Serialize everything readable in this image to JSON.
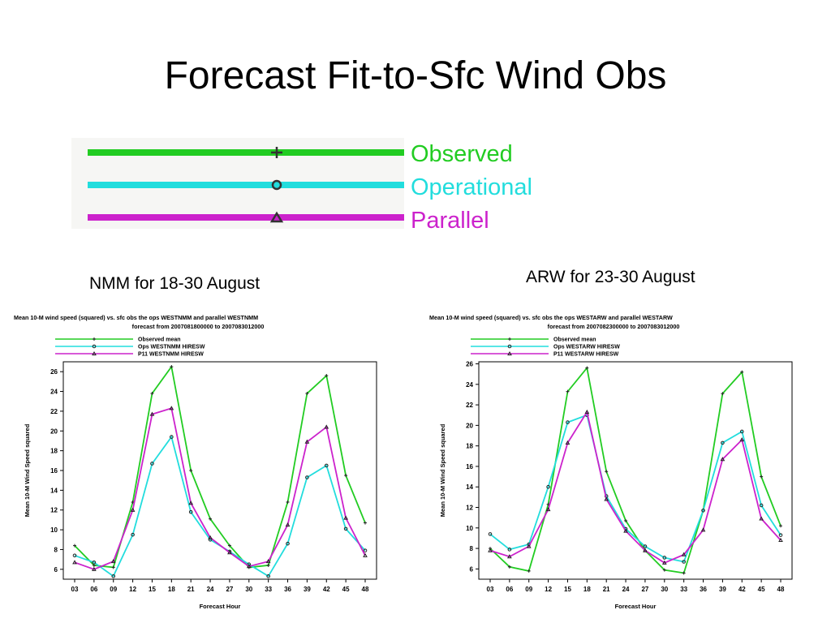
{
  "slide": {
    "title": "Forecast Fit-to-Sfc Wind Obs",
    "legend": [
      {
        "label": "Observed",
        "color": "#22cc22",
        "marker": "plus"
      },
      {
        "label": "Operational",
        "color": "#22dddd",
        "marker": "circle"
      },
      {
        "label": "Parallel",
        "color": "#cc22cc",
        "marker": "triangle"
      }
    ]
  },
  "chart_data": [
    {
      "type": "line",
      "caption": "NMM for 18-30 August",
      "title": "Mean 10-M wind speed (squared) vs. sfc obs the ops WESTNMM and parallel WESTNMM",
      "subtitle": "forecast from 2007081800000 to 2007083012000",
      "xlabel": "Forecast Hour",
      "ylabel": "Mean 10-M Wind Speed squared",
      "categories": [
        "03",
        "06",
        "09",
        "12",
        "15",
        "18",
        "21",
        "24",
        "27",
        "30",
        "33",
        "36",
        "39",
        "42",
        "45",
        "48"
      ],
      "ylim": [
        5,
        27
      ],
      "yticks": [
        6,
        8,
        10,
        12,
        14,
        16,
        18,
        20,
        22,
        24,
        26
      ],
      "grid": false,
      "legend_position": "top-left",
      "series": [
        {
          "name": "Observed mean",
          "color": "#22cc22",
          "marker": "plus",
          "values": [
            8.4,
            6.4,
            6.2,
            12.8,
            23.8,
            26.5,
            16.0,
            11.1,
            8.4,
            6.2,
            6.4,
            12.8,
            23.8,
            25.6,
            15.5,
            10.7
          ]
        },
        {
          "name": "Ops WESTNMM HIRESW",
          "color": "#22dddd",
          "marker": "circle",
          "values": [
            7.4,
            6.7,
            5.3,
            9.5,
            16.7,
            19.4,
            11.8,
            9.0,
            7.8,
            6.5,
            5.3,
            8.6,
            15.3,
            16.5,
            10.1,
            7.9
          ]
        },
        {
          "name": "P11 WESTNMM HIRESW",
          "color": "#cc22cc",
          "marker": "triangle",
          "values": [
            6.7,
            6.0,
            6.8,
            12.0,
            21.7,
            22.3,
            12.7,
            9.2,
            7.7,
            6.3,
            6.8,
            10.5,
            18.9,
            20.4,
            11.2,
            7.4
          ]
        }
      ]
    },
    {
      "type": "line",
      "caption": "ARW for 23-30 August",
      "title": "Mean 10-M wind speed (squared) vs. sfc obs the ops WESTARW and parallel WESTARW",
      "subtitle": "forecast from 2007082300000 to 2007083012000",
      "xlabel": "Forecast Hour",
      "ylabel": "Mean 10-M Wind Speed squared",
      "categories": [
        "03",
        "06",
        "09",
        "12",
        "15",
        "18",
        "21",
        "24",
        "27",
        "30",
        "33",
        "36",
        "39",
        "42",
        "45",
        "48"
      ],
      "ylim": [
        5,
        26.2
      ],
      "yticks": [
        6,
        8,
        10,
        12,
        14,
        16,
        18,
        20,
        22,
        24,
        26
      ],
      "grid": false,
      "legend_position": "top-left",
      "series": [
        {
          "name": "Observed mean",
          "color": "#22cc22",
          "marker": "plus",
          "values": [
            8.0,
            6.2,
            5.8,
            12.3,
            23.3,
            25.6,
            15.5,
            10.7,
            7.8,
            5.9,
            5.6,
            11.7,
            23.1,
            25.2,
            15.0,
            10.2
          ]
        },
        {
          "name": "Ops WESTARW HIRESW",
          "color": "#22dddd",
          "marker": "circle",
          "values": [
            9.4,
            7.9,
            8.4,
            14.0,
            20.3,
            21.0,
            13.1,
            9.9,
            8.2,
            7.1,
            6.7,
            11.7,
            18.3,
            19.4,
            12.2,
            9.3
          ]
        },
        {
          "name": "P11 WESTARW HIRESW",
          "color": "#cc22cc",
          "marker": "triangle",
          "values": [
            7.8,
            7.2,
            8.2,
            11.8,
            18.3,
            21.3,
            12.8,
            9.7,
            7.8,
            6.6,
            7.4,
            9.8,
            16.7,
            18.6,
            10.9,
            8.8
          ]
        }
      ]
    }
  ]
}
